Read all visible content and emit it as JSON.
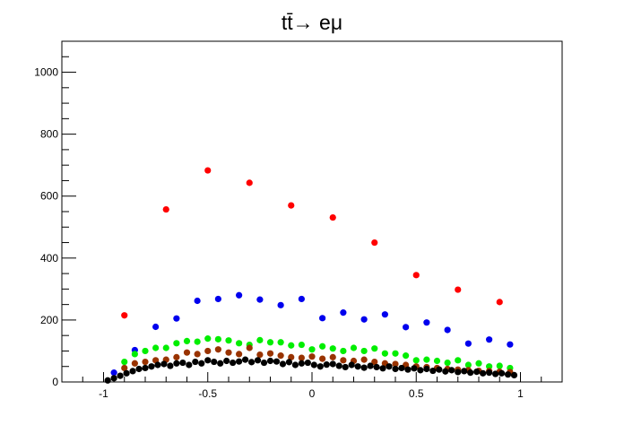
{
  "chart_data": {
    "type": "scatter",
    "title": "tt̄→ eμ",
    "xlabel": "",
    "ylabel": "",
    "xlim": [
      -1.2,
      1.2
    ],
    "ylim": [
      0,
      1100
    ],
    "x_ticks": [
      -1,
      -0.5,
      0,
      0.5,
      1
    ],
    "x_tick_labels": [
      "-1",
      "-0.5",
      "0",
      "0.5",
      "1"
    ],
    "y_ticks": [
      0,
      200,
      400,
      600,
      800,
      1000
    ],
    "y_tick_labels": [
      "0",
      "200",
      "400",
      "600",
      "800",
      "1000"
    ],
    "grid": false,
    "series": [
      {
        "color": "#ff0000",
        "x": [
          -0.9,
          -0.7,
          -0.5,
          -0.3,
          -0.1,
          0.1,
          0.3,
          0.5,
          0.7,
          0.9
        ],
        "y": [
          215,
          557,
          683,
          643,
          570,
          531,
          450,
          345,
          298,
          258
        ]
      },
      {
        "color": "#0000ee",
        "x": [
          -0.95,
          -0.85,
          -0.75,
          -0.65,
          -0.55,
          -0.45,
          -0.35,
          -0.25,
          -0.15,
          -0.05,
          0.05,
          0.15,
          0.25,
          0.35,
          0.45,
          0.55,
          0.65,
          0.75,
          0.85,
          0.95
        ],
        "y": [
          30,
          103,
          178,
          205,
          262,
          268,
          280,
          266,
          248,
          268,
          206,
          224,
          202,
          218,
          177,
          192,
          168,
          124,
          137,
          121
        ]
      },
      {
        "color": "#00ee00",
        "x": [
          -0.9,
          -0.85,
          -0.8,
          -0.75,
          -0.7,
          -0.65,
          -0.6,
          -0.55,
          -0.5,
          -0.45,
          -0.4,
          -0.35,
          -0.3,
          -0.25,
          -0.2,
          -0.15,
          -0.1,
          -0.05,
          0,
          0.05,
          0.1,
          0.15,
          0.2,
          0.25,
          0.3,
          0.35,
          0.4,
          0.45,
          0.5,
          0.55,
          0.6,
          0.65,
          0.7,
          0.75,
          0.8,
          0.85,
          0.9,
          0.95
        ],
        "y": [
          65,
          90,
          100,
          110,
          110,
          125,
          132,
          130,
          140,
          138,
          134,
          125,
          120,
          135,
          128,
          128,
          118,
          120,
          105,
          115,
          108,
          100,
          110,
          100,
          108,
          92,
          92,
          85,
          70,
          72,
          68,
          62,
          70,
          55,
          60,
          50,
          52,
          45
        ]
      },
      {
        "color": "#993300",
        "x": [
          -0.9,
          -0.85,
          -0.8,
          -0.75,
          -0.7,
          -0.65,
          -0.6,
          -0.55,
          -0.5,
          -0.45,
          -0.4,
          -0.35,
          -0.3,
          -0.25,
          -0.2,
          -0.15,
          -0.1,
          -0.05,
          0,
          0.05,
          0.1,
          0.15,
          0.2,
          0.25,
          0.3,
          0.35,
          0.4,
          0.45,
          0.5,
          0.55,
          0.6,
          0.65,
          0.7,
          0.75,
          0.8,
          0.85,
          0.9,
          0.95
        ],
        "y": [
          45,
          60,
          65,
          70,
          72,
          80,
          95,
          90,
          100,
          105,
          95,
          90,
          110,
          88,
          92,
          85,
          80,
          78,
          82,
          75,
          80,
          70,
          68,
          72,
          65,
          60,
          58,
          55,
          50,
          48,
          45,
          42,
          40,
          38,
          36,
          35,
          33,
          32
        ]
      },
      {
        "color": "#000000",
        "x": [
          -0.98,
          -0.95,
          -0.92,
          -0.89,
          -0.86,
          -0.83,
          -0.8,
          -0.77,
          -0.74,
          -0.71,
          -0.68,
          -0.65,
          -0.62,
          -0.59,
          -0.56,
          -0.53,
          -0.5,
          -0.47,
          -0.44,
          -0.41,
          -0.38,
          -0.35,
          -0.32,
          -0.29,
          -0.26,
          -0.23,
          -0.2,
          -0.17,
          -0.14,
          -0.11,
          -0.08,
          -0.05,
          -0.02,
          0.01,
          0.04,
          0.07,
          0.1,
          0.13,
          0.16,
          0.19,
          0.22,
          0.25,
          0.28,
          0.31,
          0.34,
          0.37,
          0.4,
          0.43,
          0.46,
          0.49,
          0.52,
          0.55,
          0.58,
          0.61,
          0.64,
          0.67,
          0.7,
          0.73,
          0.76,
          0.79,
          0.82,
          0.85,
          0.88,
          0.91,
          0.94,
          0.97
        ],
        "y": [
          5,
          12,
          20,
          28,
          35,
          42,
          45,
          50,
          55,
          58,
          52,
          60,
          62,
          55,
          65,
          60,
          70,
          65,
          60,
          68,
          62,
          66,
          72,
          64,
          70,
          62,
          68,
          66,
          58,
          64,
          55,
          60,
          62,
          55,
          50,
          56,
          58,
          52,
          48,
          55,
          50,
          46,
          52,
          48,
          44,
          50,
          42,
          45,
          40,
          44,
          38,
          42,
          36,
          40,
          34,
          38,
          32,
          35,
          30,
          33,
          28,
          30,
          26,
          28,
          24,
          22
        ]
      }
    ]
  }
}
